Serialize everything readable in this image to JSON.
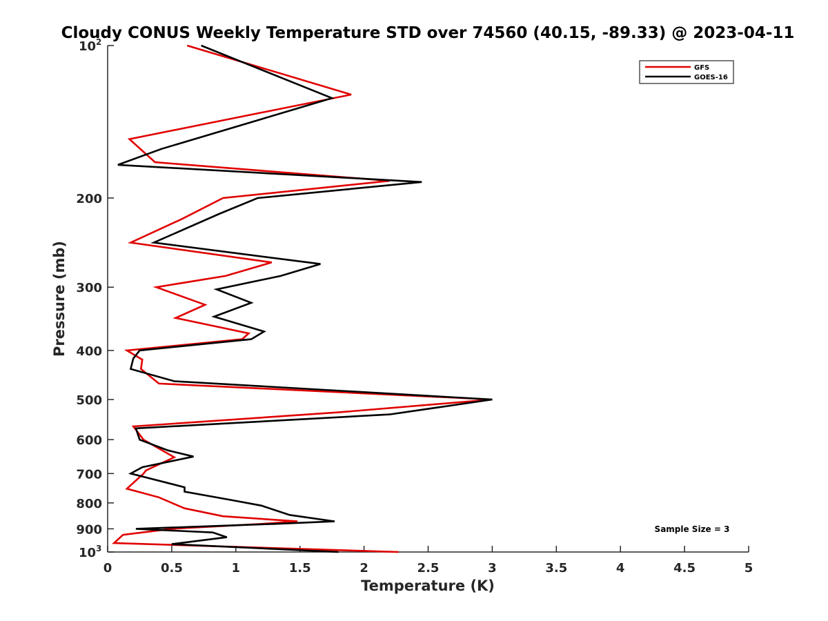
{
  "chart_data": {
    "type": "line",
    "title": "Cloudy CONUS Weekly Temperature STD over 74560 (40.15, -89.33) @ 2023-04-11",
    "xlabel": "Temperature (K)",
    "ylabel": "Pressure (mb)",
    "xlim": [
      0,
      5
    ],
    "ylim": [
      100,
      1000
    ],
    "y_scale": "log",
    "y_reversed": true,
    "grid": false,
    "legend_position": "top-right",
    "x_ticks": [
      "0",
      "0.5",
      "1",
      "1.5",
      "2",
      "2.5",
      "3",
      "3.5",
      "4",
      "4.5",
      "5"
    ],
    "y_ticks": [
      {
        "value": 100,
        "label": "10",
        "exp": "2"
      },
      {
        "value": 200,
        "label": "200",
        "exp": ""
      },
      {
        "value": 300,
        "label": "300",
        "exp": ""
      },
      {
        "value": 400,
        "label": "400",
        "exp": ""
      },
      {
        "value": 500,
        "label": "500",
        "exp": ""
      },
      {
        "value": 600,
        "label": "600",
        "exp": ""
      },
      {
        "value": 700,
        "label": "700",
        "exp": ""
      },
      {
        "value": 800,
        "label": "800",
        "exp": ""
      },
      {
        "value": 900,
        "label": "900",
        "exp": ""
      },
      {
        "value": 1000,
        "label": "10",
        "exp": "3"
      }
    ],
    "series": [
      {
        "name": "GFS",
        "color": "#e00000",
        "points": [
          [
            0.62,
            100
          ],
          [
            1.9,
            125
          ],
          [
            0.17,
            153
          ],
          [
            0.37,
            170
          ],
          [
            2.2,
            185
          ],
          [
            0.9,
            200
          ],
          [
            0.58,
            220
          ],
          [
            0.18,
            245
          ],
          [
            1.28,
            268
          ],
          [
            0.92,
            285
          ],
          [
            0.38,
            300
          ],
          [
            0.76,
            325
          ],
          [
            0.53,
            345
          ],
          [
            1.1,
            370
          ],
          [
            1.05,
            380
          ],
          [
            0.15,
            400
          ],
          [
            0.27,
            417
          ],
          [
            0.26,
            435
          ],
          [
            0.4,
            465
          ],
          [
            3.0,
            500
          ],
          [
            1.8,
            530
          ],
          [
            0.2,
            565
          ],
          [
            0.28,
            600
          ],
          [
            0.52,
            650
          ],
          [
            0.3,
            690
          ],
          [
            0.28,
            700
          ],
          [
            0.15,
            750
          ],
          [
            0.4,
            780
          ],
          [
            0.55,
            810
          ],
          [
            0.6,
            820
          ],
          [
            0.9,
            850
          ],
          [
            1.48,
            870
          ],
          [
            1.2,
            880
          ],
          [
            0.5,
            900
          ],
          [
            0.12,
            925
          ],
          [
            0.05,
            960
          ],
          [
            2.27,
            1000
          ]
        ]
      },
      {
        "name": "GOES-16",
        "color": "#000000",
        "points": [
          [
            0.73,
            100
          ],
          [
            1.75,
            127
          ],
          [
            0.42,
            160
          ],
          [
            0.08,
            172
          ],
          [
            2.45,
            186
          ],
          [
            1.17,
            200
          ],
          [
            0.87,
            215
          ],
          [
            0.36,
            245
          ],
          [
            1.66,
            270
          ],
          [
            1.35,
            285
          ],
          [
            0.85,
            303
          ],
          [
            1.12,
            322
          ],
          [
            0.83,
            343
          ],
          [
            1.22,
            367
          ],
          [
            1.12,
            380
          ],
          [
            0.25,
            400
          ],
          [
            0.2,
            415
          ],
          [
            0.18,
            435
          ],
          [
            0.52,
            460
          ],
          [
            3.0,
            500
          ],
          [
            2.2,
            535
          ],
          [
            0.22,
            570
          ],
          [
            0.25,
            600
          ],
          [
            0.47,
            630
          ],
          [
            0.67,
            648
          ],
          [
            0.27,
            680
          ],
          [
            0.18,
            700
          ],
          [
            0.6,
            745
          ],
          [
            0.6,
            760
          ],
          [
            0.97,
            790
          ],
          [
            1.2,
            810
          ],
          [
            1.42,
            845
          ],
          [
            1.77,
            870
          ],
          [
            1.3,
            880
          ],
          [
            0.22,
            900
          ],
          [
            0.82,
            915
          ],
          [
            0.93,
            935
          ],
          [
            0.5,
            965
          ],
          [
            1.8,
            1000
          ]
        ]
      }
    ],
    "annotation": "Sample Size = 3"
  }
}
